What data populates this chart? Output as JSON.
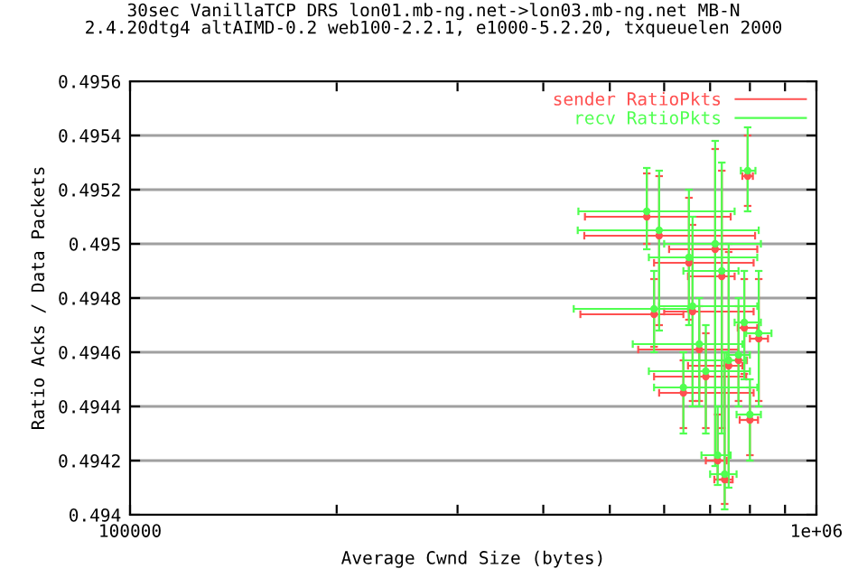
{
  "chart_data": {
    "type": "scatter",
    "title": "30sec VanillaTCP DRS lon01.mb-ng.net->lon03.mb-ng.net MB-N\n2.4.20dtg4 altAIMD-0.2 web100-2.2.1, e1000-5.2.20, txqueuelen 2000",
    "xlabel": "Average Cwnd Size (bytes)",
    "ylabel": "Ratio Acks / Data Packets",
    "log": "x",
    "xlim": [
      100000,
      1000000
    ],
    "ylim": [
      0.494,
      0.4956
    ],
    "xticks": [
      {
        "value": 100000,
        "label": "100000"
      },
      {
        "value": 200000,
        "label": null
      },
      {
        "value": 300000,
        "label": null
      },
      {
        "value": 400000,
        "label": null
      },
      {
        "value": 500000,
        "label": null
      },
      {
        "value": 600000,
        "label": null
      },
      {
        "value": 700000,
        "label": null
      },
      {
        "value": 800000,
        "label": null
      },
      {
        "value": 900000,
        "label": null
      },
      {
        "value": 1000000,
        "label": "1e+06"
      }
    ],
    "yticks": [
      {
        "value": 0.494,
        "label": "0.494"
      },
      {
        "value": 0.4942,
        "label": "0.4942"
      },
      {
        "value": 0.4944,
        "label": "0.4944"
      },
      {
        "value": 0.4946,
        "label": "0.4946"
      },
      {
        "value": 0.4948,
        "label": "0.4948"
      },
      {
        "value": 0.495,
        "label": "0.495"
      },
      {
        "value": 0.4952,
        "label": "0.4952"
      },
      {
        "value": 0.4954,
        "label": "0.4954"
      },
      {
        "value": 0.4956,
        "label": "0.4956"
      }
    ],
    "grid": "y",
    "legend": "top right",
    "series": [
      {
        "name": "sender RatioPkts",
        "color": "#ff5050",
        "marker": "circle",
        "x": [
          794000,
          566000,
          590000,
          712000,
          728000,
          660000,
          745000,
          770000,
          580000,
          785000,
          824000,
          675000,
          690000,
          640000,
          800000,
          718000,
          735000,
          652000
        ],
        "values": [
          0.49525,
          0.4951,
          0.49503,
          0.49498,
          0.49488,
          0.49475,
          0.49455,
          0.49457,
          0.49474,
          0.49469,
          0.49465,
          0.49461,
          0.49451,
          0.49445,
          0.49435,
          0.4942,
          0.49413,
          0.49493
        ],
        "xerrors": [
          [
            780000,
            808000
          ],
          [
            460000,
            750000
          ],
          [
            459000,
            814000
          ],
          [
            610000,
            820000
          ],
          [
            650000,
            760000
          ],
          [
            600000,
            810000
          ],
          [
            650000,
            780000
          ],
          [
            748000,
            792000
          ],
          [
            453000,
            640000
          ],
          [
            768000,
            820000
          ],
          [
            800000,
            850000
          ],
          [
            550000,
            770000
          ],
          [
            580000,
            790000
          ],
          [
            590000,
            810000
          ],
          [
            773000,
            822000
          ],
          [
            690000,
            740000
          ],
          [
            710000,
            755000
          ],
          [
            580000,
            810000
          ]
        ],
        "errors": [
          [
            0.49514,
            0.4954
          ],
          [
            0.495,
            0.49526
          ],
          [
            0.4947,
            0.49525
          ],
          [
            0.4942,
            0.49535
          ],
          [
            0.49432,
            0.49527
          ],
          [
            0.49442,
            0.49507
          ],
          [
            0.49412,
            0.49497
          ],
          [
            0.49442,
            0.49477
          ],
          [
            0.49462,
            0.49487
          ],
          [
            0.49452,
            0.49487
          ],
          [
            0.49442,
            0.49487
          ],
          [
            0.49442,
            0.49477
          ],
          [
            0.49432,
            0.49467
          ],
          [
            0.49432,
            0.49457
          ],
          [
            0.49422,
            0.49447
          ],
          [
            0.49413,
            0.49437
          ],
          [
            0.49404,
            0.49457
          ],
          [
            0.49472,
            0.49517
          ]
        ]
      },
      {
        "name": "recv RatioPkts",
        "color": "#50ff50",
        "marker": "circle",
        "x": [
          794000,
          566000,
          590000,
          712000,
          728000,
          660000,
          745000,
          770000,
          580000,
          785000,
          824000,
          675000,
          690000,
          640000,
          800000,
          718000,
          735000,
          652000
        ],
        "values": [
          0.49527,
          0.49512,
          0.49505,
          0.495,
          0.4949,
          0.49477,
          0.49457,
          0.49459,
          0.49476,
          0.49471,
          0.49467,
          0.49463,
          0.49453,
          0.49447,
          0.49437,
          0.49422,
          0.49415,
          0.49495
        ],
        "xerrors": [
          [
            776000,
            815000
          ],
          [
            450000,
            760000
          ],
          [
            449000,
            824000
          ],
          [
            600000,
            830000
          ],
          [
            640000,
            770000
          ],
          [
            590000,
            820000
          ],
          [
            640000,
            790000
          ],
          [
            740000,
            800000
          ],
          [
            443000,
            650000
          ],
          [
            760000,
            830000
          ],
          [
            790000,
            860000
          ],
          [
            540000,
            780000
          ],
          [
            570000,
            800000
          ],
          [
            580000,
            820000
          ],
          [
            765000,
            830000
          ],
          [
            680000,
            750000
          ],
          [
            700000,
            765000
          ],
          [
            570000,
            820000
          ]
        ],
        "errors": [
          [
            0.49512,
            0.49543
          ],
          [
            0.49498,
            0.49528
          ],
          [
            0.49468,
            0.49527
          ],
          [
            0.49418,
            0.49538
          ],
          [
            0.4943,
            0.4953
          ],
          [
            0.4944,
            0.4951
          ],
          [
            0.4941,
            0.495
          ],
          [
            0.4944,
            0.4948
          ],
          [
            0.4946,
            0.4949
          ],
          [
            0.4945,
            0.4949
          ],
          [
            0.4944,
            0.4949
          ],
          [
            0.4944,
            0.4948
          ],
          [
            0.4943,
            0.4947
          ],
          [
            0.4943,
            0.4946
          ],
          [
            0.4942,
            0.4945
          ],
          [
            0.49411,
            0.4944
          ],
          [
            0.49402,
            0.4946
          ],
          [
            0.4947,
            0.4952
          ]
        ]
      }
    ]
  }
}
